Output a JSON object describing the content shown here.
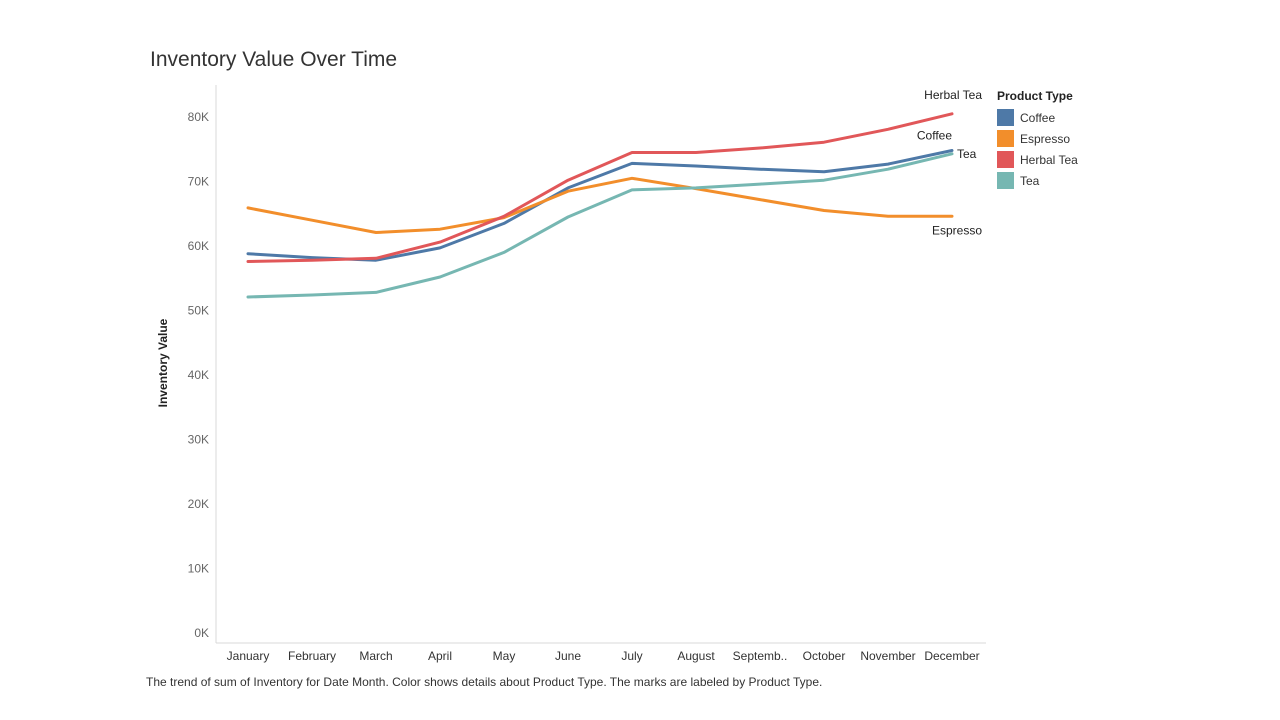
{
  "title": "Inventory Value Over Time",
  "caption": "The trend of sum of Inventory for Date Month.  Color shows details about Product Type.  The marks are labeled by Product Type.",
  "legend": {
    "title": "Product Type",
    "items": [
      {
        "label": "Coffee",
        "color": "#4e79a7"
      },
      {
        "label": "Espresso",
        "color": "#f28e2b"
      },
      {
        "label": "Herbal Tea",
        "color": "#e15759"
      },
      {
        "label": "Tea",
        "color": "#76b7b2"
      }
    ]
  },
  "chart_data": {
    "type": "line",
    "title": "Inventory Value Over Time",
    "xlabel": "",
    "ylabel": "Inventory Value",
    "categories": [
      "January",
      "February",
      "March",
      "April",
      "May",
      "June",
      "July",
      "August",
      "Septemb..",
      "October",
      "November",
      "December"
    ],
    "ylim": [
      0,
      85000
    ],
    "yticks": [
      0,
      10000,
      20000,
      30000,
      40000,
      50000,
      60000,
      70000,
      80000
    ],
    "ytick_labels": [
      "0K",
      "10K",
      "20K",
      "30K",
      "40K",
      "50K",
      "60K",
      "70K",
      "80K"
    ],
    "grid": false,
    "legend_position": "top-right",
    "series": [
      {
        "name": "Coffee",
        "color": "#4e79a7",
        "values": [
          58800,
          58200,
          57800,
          59700,
          63500,
          69000,
          72800,
          72400,
          71900,
          71500,
          72700,
          74800
        ]
      },
      {
        "name": "Espresso",
        "color": "#f28e2b",
        "values": [
          65900,
          64000,
          62100,
          62600,
          64400,
          68500,
          70500,
          68900,
          67200,
          65500,
          64600,
          64600
        ]
      },
      {
        "name": "Herbal Tea",
        "color": "#e15759",
        "values": [
          57600,
          57800,
          58100,
          60600,
          64600,
          70200,
          74500,
          74500,
          75200,
          76100,
          78100,
          80500
        ]
      },
      {
        "name": "Tea",
        "color": "#76b7b2",
        "values": [
          52100,
          52400,
          52800,
          55200,
          59000,
          64500,
          68700,
          69000,
          69600,
          70200,
          71900,
          74300
        ]
      }
    ],
    "end_labels": [
      {
        "series": "Herbal Tea",
        "text": "Herbal Tea"
      },
      {
        "series": "Coffee",
        "text": "Coffee"
      },
      {
        "series": "Tea",
        "text": "Tea"
      },
      {
        "series": "Espresso",
        "text": "Espresso"
      }
    ]
  }
}
